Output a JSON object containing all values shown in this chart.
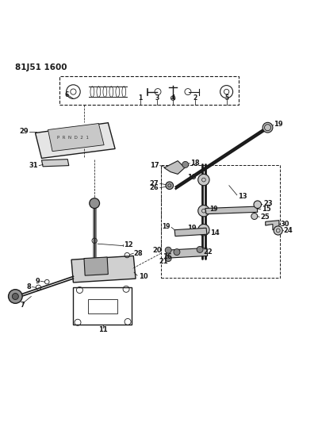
{
  "title": "81J51 1600",
  "bg_color": "#ffffff",
  "line_color": "#1a1a1a",
  "fig_width": 4.02,
  "fig_height": 5.33,
  "dpi": 100
}
